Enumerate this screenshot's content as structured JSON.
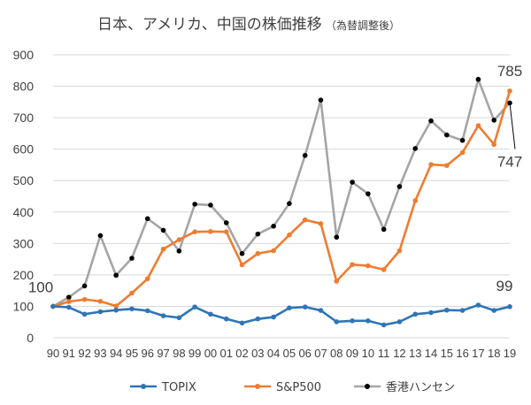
{
  "chart_data": {
    "type": "line",
    "title": "日本、アメリカ、中国の株価推移",
    "subtitle": "（為替調整後）",
    "ylim": [
      0,
      900
    ],
    "yticks": [
      0,
      100,
      200,
      300,
      400,
      500,
      600,
      700,
      800,
      900
    ],
    "grid": true,
    "legend_position": "bottom",
    "categories": [
      "90",
      "91",
      "92",
      "93",
      "94",
      "95",
      "96",
      "97",
      "98",
      "99",
      "00",
      "01",
      "02",
      "03",
      "04",
      "05",
      "06",
      "07",
      "08",
      "09",
      "10",
      "11",
      "12",
      "13",
      "14",
      "15",
      "16",
      "17",
      "18",
      "19"
    ],
    "series": [
      {
        "name": "TOPIX",
        "color": "#2e75b6",
        "values": [
          100,
          97,
          75,
          83,
          88,
          92,
          86,
          70,
          64,
          98,
          75,
          60,
          47,
          60,
          66,
          95,
          98,
          87,
          51,
          54,
          54,
          41,
          51,
          75,
          80,
          88,
          87,
          104,
          87,
          99
        ]
      },
      {
        "name": "S&P500",
        "color": "#ed7d31",
        "values": [
          100,
          115,
          122,
          116,
          101,
          142,
          188,
          282,
          312,
          337,
          338,
          337,
          232,
          268,
          277,
          327,
          375,
          363,
          180,
          233,
          229,
          217,
          277,
          436,
          551,
          548,
          589,
          675,
          615,
          785
        ]
      },
      {
        "name": "香港ハンセン",
        "color": "#a5a5a5",
        "values": [
          100,
          129,
          165,
          325,
          199,
          253,
          379,
          342,
          276,
          425,
          422,
          366,
          268,
          330,
          355,
          427,
          580,
          756,
          320,
          495,
          458,
          345,
          481,
          602,
          690,
          645,
          628,
          822,
          692,
          747
        ]
      }
    ],
    "annotations": [
      {
        "text": "100",
        "series": 0,
        "index": 0
      },
      {
        "text": "785",
        "series": 1,
        "index": 29
      },
      {
        "text": "747",
        "series": 2,
        "index": 29
      },
      {
        "text": "99",
        "series": 0,
        "index": 29
      }
    ]
  }
}
